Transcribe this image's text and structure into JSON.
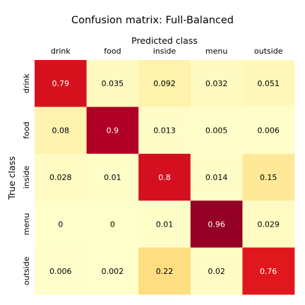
{
  "chart_data": {
    "type": "heatmap",
    "title": "Confusion matrix: Full-Balanced",
    "xlabel": "Predicted class",
    "ylabel": "True class",
    "x_axis_position": "top",
    "x_categories": [
      "drink",
      "food",
      "inside",
      "menu",
      "outside"
    ],
    "y_categories": [
      "drink",
      "food",
      "inside",
      "menu",
      "outside"
    ],
    "values": [
      [
        0.79,
        0.035,
        0.092,
        0.032,
        0.051
      ],
      [
        0.08,
        0.9,
        0.013,
        0.005,
        0.006
      ],
      [
        0.028,
        0.01,
        0.8,
        0.014,
        0.15
      ],
      [
        0,
        0,
        0.01,
        0.96,
        0.029
      ],
      [
        0.006,
        0.002,
        0.22,
        0.02,
        0.76
      ]
    ],
    "value_range": [
      0,
      1
    ],
    "colormap": "YlOrRd",
    "colorbar": false,
    "grid": false
  }
}
